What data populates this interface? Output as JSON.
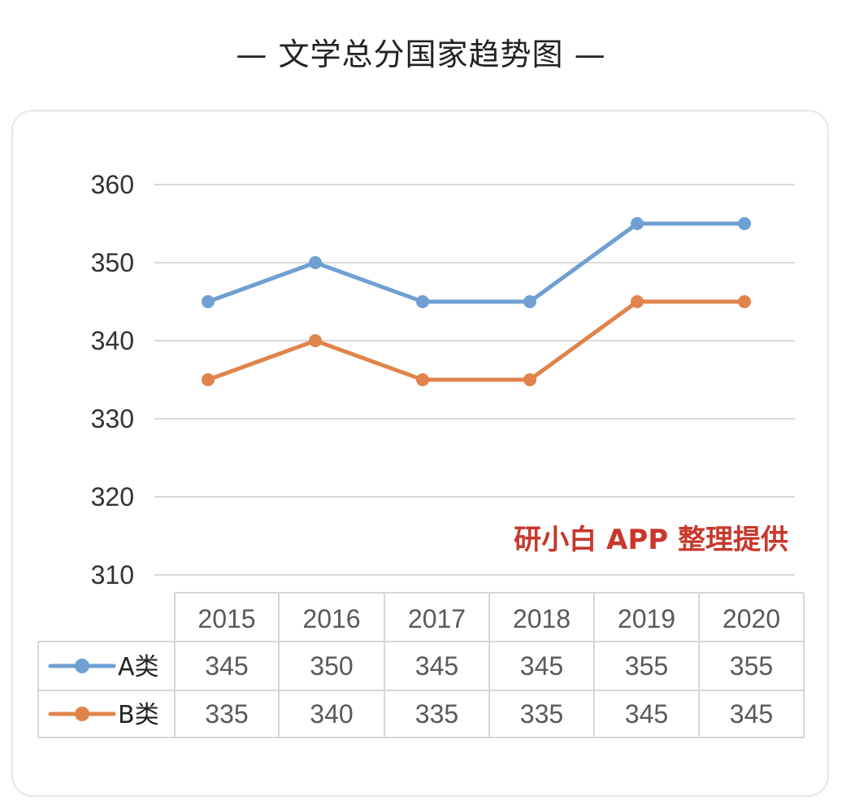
{
  "title": "— 文学总分国家趋势图 —",
  "watermark": "研小白 APP 整理提供",
  "chart_data": {
    "type": "line",
    "title": "— 文学总分国家趋势图 —",
    "xlabel": "",
    "ylabel": "",
    "categories": [
      "2015",
      "2016",
      "2017",
      "2018",
      "2019",
      "2020"
    ],
    "series": [
      {
        "name": "A类",
        "values": [
          345,
          350,
          345,
          345,
          355,
          355
        ],
        "color": "#6f9fd3"
      },
      {
        "name": "B类",
        "values": [
          335,
          340,
          335,
          335,
          345,
          345
        ],
        "color": "#e0844b"
      }
    ],
    "ylim": [
      310,
      360
    ],
    "yticks": [
      360,
      350,
      340,
      330,
      320,
      310
    ],
    "grid": true,
    "legend": "data-table",
    "data_table": true
  }
}
